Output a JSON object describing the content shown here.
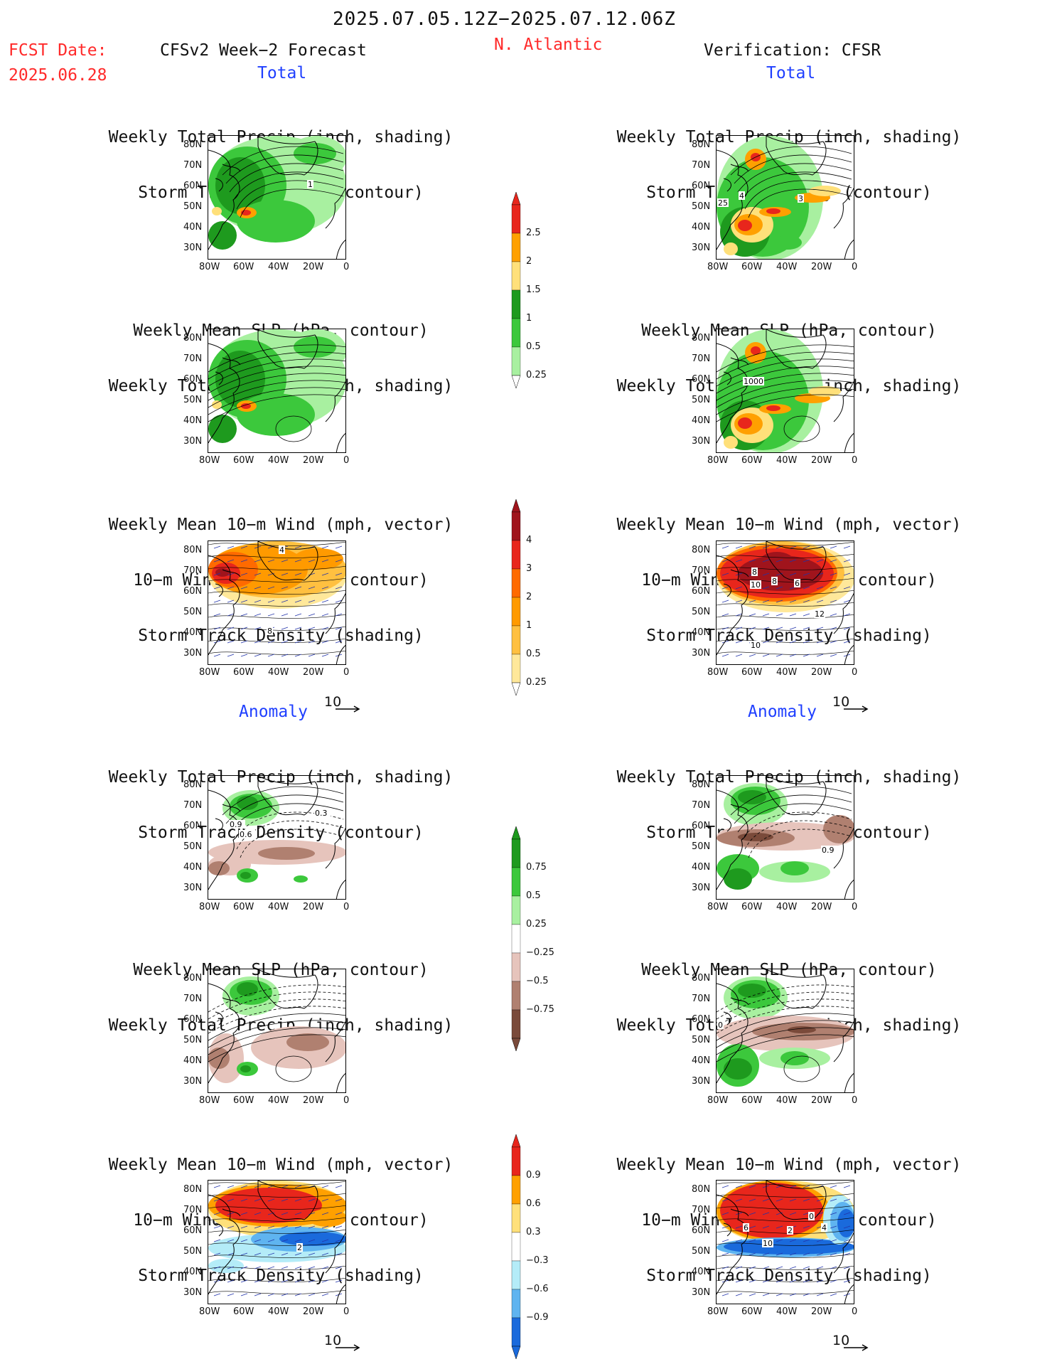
{
  "header": {
    "period": "2025.07.05.12Z−2025.07.12.06Z",
    "fcst_label": "FCST Date:",
    "fcst_date": "2025.06.28",
    "model": "CFSv2 Week−2 Forecast",
    "region": "N. Atlantic",
    "verification": "Verification: CFSR"
  },
  "sections": {
    "total": "Total",
    "anomaly": "Anomaly"
  },
  "titles": {
    "precip_storm": [
      "Weekly Total Precip (inch, shading)",
      "Storm Track Density (contour)"
    ],
    "slp_precip": [
      "Weekly Mean SLP (hPa, contour)",
      "Weekly Total Precip (inch, shading)"
    ],
    "wind_storm": [
      "Weekly Mean 10−m Wind (mph, vector)",
      "10−m Wind Speed (mph, contour)",
      "Storm Track Density (shading)"
    ]
  },
  "axes": {
    "lat": [
      "80N",
      "70N",
      "60N",
      "50N",
      "40N",
      "30N"
    ],
    "lon": [
      "80W",
      "60W",
      "40W",
      "20W",
      "0"
    ]
  },
  "vector_ref": "10",
  "colorbars": {
    "precip_total": {
      "labels": [
        "2.5",
        "2",
        "1.5",
        "1",
        "0.5",
        "0.25"
      ],
      "colors": [
        "#e8261c",
        "#ffa000",
        "#ffe07a",
        "#1e9a1e",
        "#3cc83c",
        "#a8f0a0"
      ]
    },
    "storm_total": {
      "labels": [
        "4",
        "3",
        "2",
        "1",
        "0.5",
        "0.25"
      ],
      "colors": [
        "#a0141c",
        "#e8261c",
        "#ff6a00",
        "#ff9a00",
        "#ffc040",
        "#ffe89a"
      ]
    },
    "precip_anom": {
      "labels": [
        "0.75",
        "0.5",
        "0.25",
        "−0.25",
        "−0.5",
        "−0.75"
      ],
      "colors": [
        "#1e9a1e",
        "#3cc83c",
        "#a8f0a0",
        "#ffffff",
        "#e6c4bc",
        "#b08070",
        "#7a4a3a"
      ]
    },
    "storm_anom": {
      "labels": [
        "0.9",
        "0.6",
        "0.3",
        "−0.3",
        "−0.6",
        "−0.9"
      ],
      "colors": [
        "#e8261c",
        "#ffa000",
        "#ffe07a",
        "#ffffff",
        "#b4ecf8",
        "#5fb4f0",
        "#1a6adc"
      ]
    }
  },
  "map_labels": {
    "f1": "1",
    "v1a": "4",
    "v1b": "3",
    "v1c": "25",
    "v2a": "1000",
    "f3a": "4",
    "f3b": "8",
    "v3a": "8",
    "v3b": "10",
    "v3c": "8",
    "v3d": "6",
    "v3e": "12",
    "v3f": "10",
    "f4a": "0.9",
    "f4b": "0.6",
    "f4c": "0.3",
    "v4a": "0.9",
    "v5a": "0",
    "f6a": "2",
    "v6a": "6",
    "v6b": "2",
    "v6c": "10",
    "v6d": "0",
    "v6e": "4"
  }
}
